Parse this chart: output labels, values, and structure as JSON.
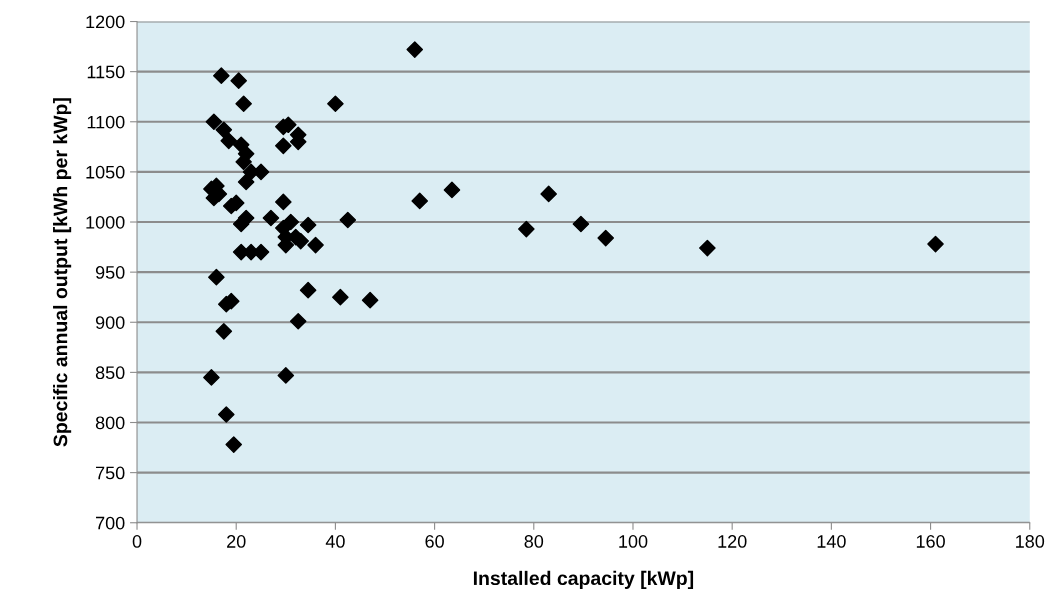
{
  "chart_data": {
    "type": "scatter",
    "xlabel": "Installed capacity [kWp]",
    "ylabel": "Specific annual output [kWh per kWp]",
    "xlim": [
      0,
      180
    ],
    "xticks": [
      0,
      20,
      40,
      60,
      80,
      100,
      120,
      140,
      160,
      180
    ],
    "ylim": [
      700,
      1200
    ],
    "yticks": [
      700,
      750,
      800,
      850,
      900,
      950,
      1000,
      1050,
      1100,
      1150,
      1200
    ],
    "grid": "y",
    "marker": "diamond",
    "series": [
      {
        "color": "#000000",
        "x": [
          15.5,
          17,
          20.5,
          21.5,
          17.5,
          18.5,
          21,
          22,
          21.5,
          23,
          25,
          22,
          15,
          16,
          16.5,
          15.5,
          19,
          20,
          22,
          21,
          27,
          29.5,
          29.5,
          30,
          30,
          31,
          32,
          33,
          34.5,
          36,
          21,
          23,
          25,
          16,
          18,
          19,
          17.5,
          15,
          18,
          19.5,
          29.5,
          30.5,
          29.5,
          32.5,
          32.5,
          40,
          56,
          42.5,
          34.5,
          41,
          47,
          32.5,
          30,
          57,
          63.5,
          78.5,
          83,
          89.5,
          94.5,
          115,
          161
        ],
        "values": [
          1100,
          1146,
          1141,
          1118,
          1092,
          1081,
          1077,
          1068,
          1060,
          1050,
          1050,
          1040,
          1033,
          1036,
          1028,
          1024,
          1016,
          1019,
          1004,
          998,
          1004,
          1020,
          994,
          985,
          977,
          1000,
          985,
          981,
          997,
          977,
          970,
          970,
          970,
          945,
          918,
          921,
          891,
          845,
          808,
          778,
          1095,
          1097,
          1076,
          1087,
          1080,
          1118,
          1172,
          1002,
          932,
          925,
          922,
          901,
          847,
          1021,
          1032,
          993,
          1028,
          998,
          984,
          974,
          978
        ]
      }
    ]
  }
}
